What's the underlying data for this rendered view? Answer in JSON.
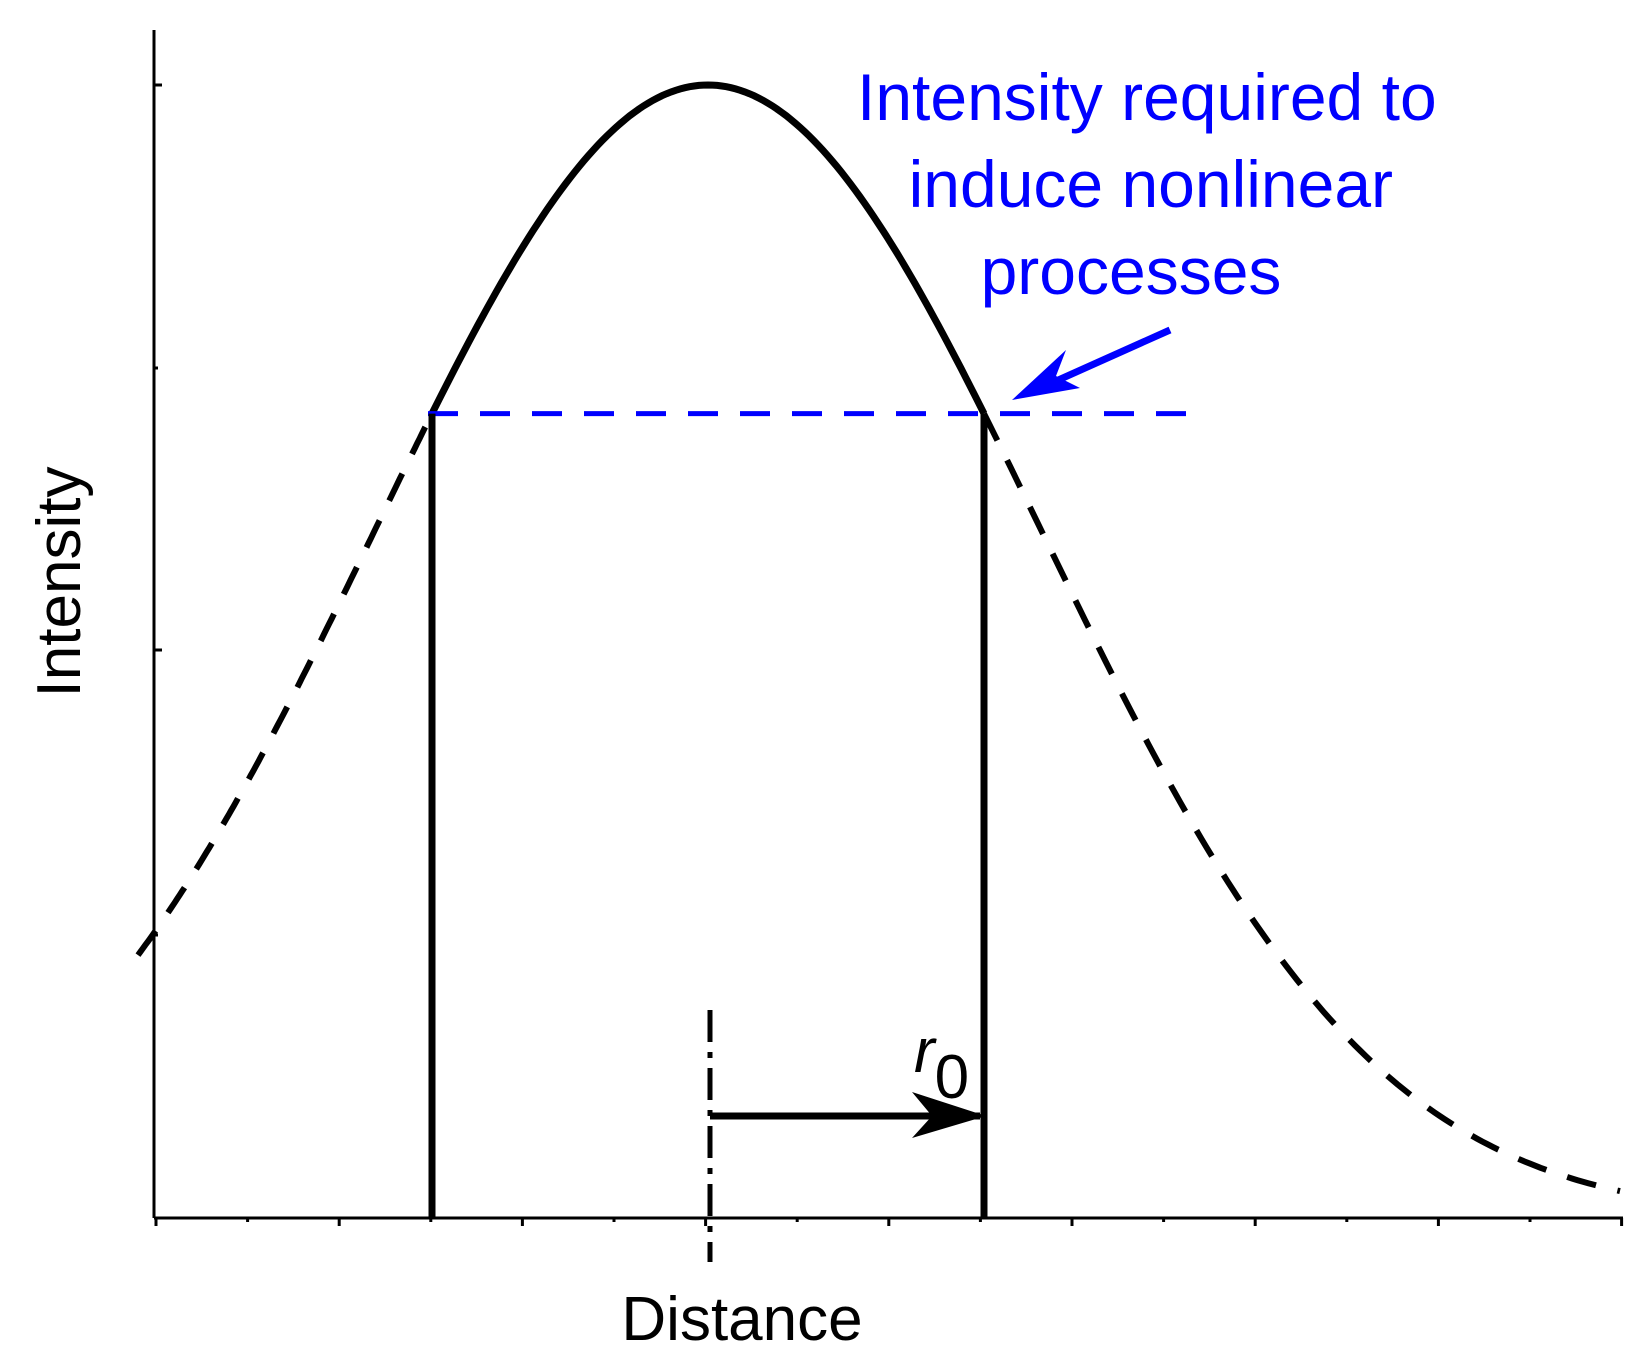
{
  "diagram": {
    "xlabel": "Distance",
    "ylabel": "Intensity",
    "annotation": {
      "lines": [
        "Intensity required to",
        "induce nonlinear",
        "processes"
      ],
      "color": "#0000ff"
    },
    "radius_label": {
      "symbol": "r",
      "subscript": "0"
    },
    "curve_color": "#000000",
    "threshold_fraction_of_peak": 0.71
  }
}
